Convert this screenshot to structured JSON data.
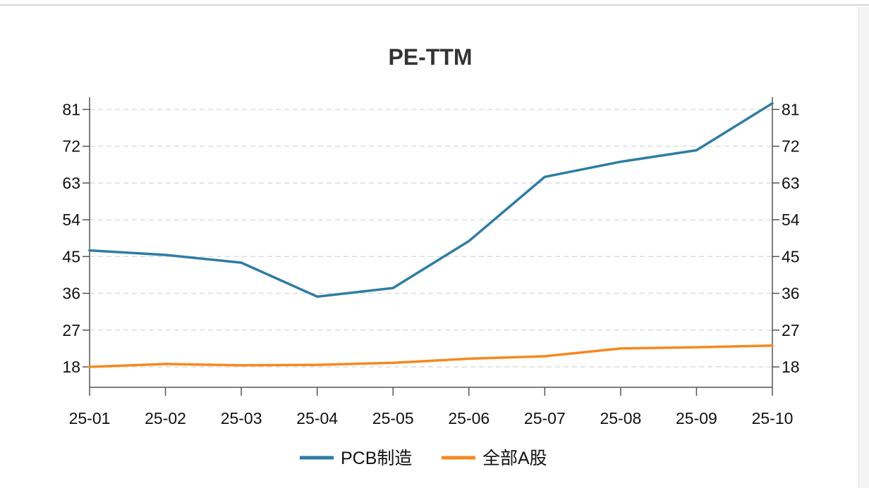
{
  "chart_data": {
    "type": "line",
    "title": "PE-TTM",
    "categories": [
      "25-01",
      "25-02",
      "25-03",
      "25-04",
      "25-05",
      "25-06",
      "25-07",
      "25-08",
      "25-09",
      "25-10"
    ],
    "y_ticks": [
      18,
      27,
      36,
      45,
      54,
      63,
      72,
      81
    ],
    "ylim": [
      13,
      84
    ],
    "grid": true,
    "dual_y_axis_mirror": true,
    "legend_position": "bottom-center",
    "series": [
      {
        "name": "PCB制造",
        "color": "#2e7ca4",
        "values": [
          46.5,
          45.4,
          43.5,
          35.2,
          37.3,
          48.8,
          64.5,
          68.2,
          71.0,
          82.5
        ]
      },
      {
        "name": "全部A股",
        "color": "#f5891f",
        "values": [
          18.0,
          18.7,
          18.4,
          18.5,
          19.0,
          20.0,
          20.6,
          22.5,
          22.8,
          23.2
        ]
      }
    ]
  }
}
